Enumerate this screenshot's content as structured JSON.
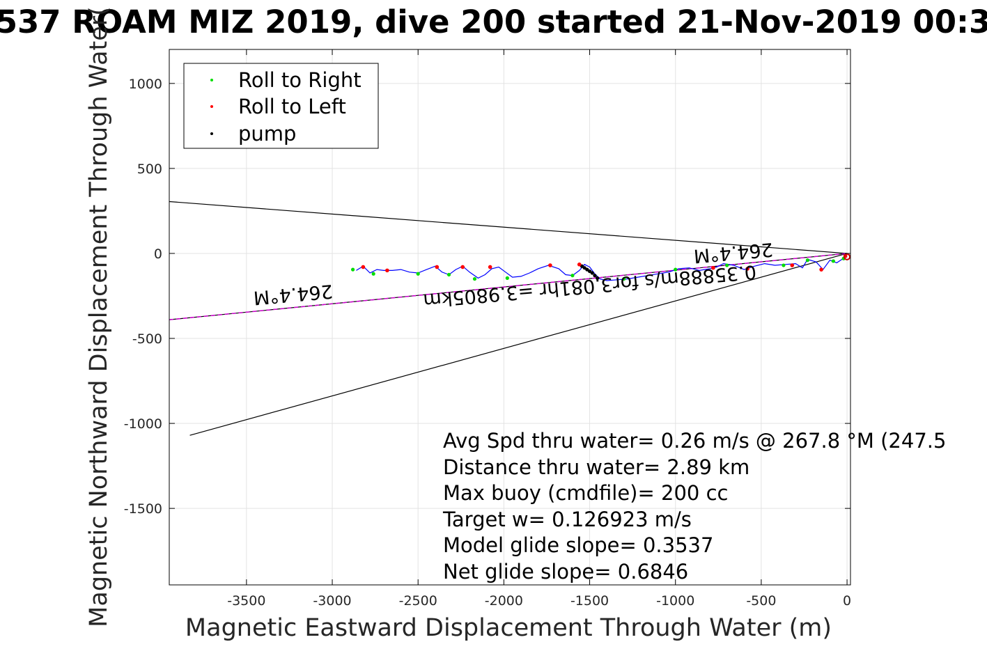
{
  "chart_data": {
    "type": "line",
    "title": "537 ROAM MIZ 2019, dive 200 started 21-Nov-2019 00:3",
    "xlabel": "Magnetic Eastward Displacement Through Water (m)",
    "ylabel": "Magnetic Northward Displacement Through Water(",
    "xlim": [
      -3950,
      20
    ],
    "ylim": [
      -1950,
      1200
    ],
    "xticks": [
      -3500,
      -3000,
      -2500,
      -2000,
      -1500,
      -1000,
      -500,
      0
    ],
    "yticks": [
      1000,
      500,
      0,
      -500,
      -1000,
      -1500
    ],
    "grid": true,
    "legend": {
      "placement": "top-left",
      "entries": [
        {
          "label": "Roll to Right",
          "color": "#00dd00"
        },
        {
          "label": "Roll to Left",
          "color": "#ff0000"
        },
        {
          "label": "pump",
          "color": "#000000"
        }
      ]
    },
    "lines": [
      {
        "x": [
          -3950,
          0
        ],
        "y": [
          305,
          0
        ],
        "color": "#000000"
      },
      {
        "x": [
          -3830,
          0
        ],
        "y": [
          -1070,
          0
        ],
        "color": "#000000"
      },
      {
        "x": [
          -3950,
          0
        ],
        "y": [
          -390,
          0
        ],
        "color": "#000000"
      },
      {
        "x": [
          -3950,
          0
        ],
        "y": [
          -390,
          0
        ],
        "color": "#cc00cc",
        "dash": true
      }
    ],
    "track": {
      "color": "#0000ff",
      "x": [
        0,
        -30,
        -60,
        -100,
        -140,
        -180,
        -230,
        -260,
        -300,
        -360,
        -420,
        -480,
        -540,
        -600,
        -660,
        -720,
        -760,
        -800,
        -860,
        -920,
        -980,
        -1040,
        -1100,
        -1160,
        -1220,
        -1280,
        -1340,
        -1400,
        -1440,
        -1470,
        -1500,
        -1530,
        -1560,
        -1600,
        -1640,
        -1680,
        -1740,
        -1800,
        -1850,
        -1900,
        -1950,
        -1990,
        -2030,
        -2070,
        -2110,
        -2150,
        -2200,
        -2240,
        -2280,
        -2320,
        -2360,
        -2400,
        -2450,
        -2500,
        -2550,
        -2600,
        -2650,
        -2700,
        -2740,
        -2780,
        -2820,
        -2860
      ],
      "y": [
        -20,
        -35,
        -55,
        -40,
        -95,
        -50,
        -35,
        -85,
        -60,
        -65,
        -70,
        -60,
        -75,
        -95,
        -70,
        -60,
        -80,
        -90,
        -100,
        -85,
        -90,
        -110,
        -120,
        -130,
        -140,
        -150,
        -155,
        -160,
        -150,
        -120,
        -80,
        -65,
        -100,
        -130,
        -125,
        -90,
        -70,
        -90,
        -115,
        -135,
        -140,
        -110,
        -80,
        -90,
        -125,
        -145,
        -110,
        -75,
        -95,
        -125,
        -110,
        -75,
        -95,
        -115,
        -110,
        -95,
        -100,
        -100,
        -95,
        -115,
        -75,
        -100
      ]
    },
    "roll_right": {
      "x": [
        -20,
        -80,
        -230,
        -370,
        -700,
        -1000,
        -1300,
        -1600,
        -1980,
        -2170,
        -2320,
        -2500,
        -2760,
        -2880
      ],
      "y": [
        -30,
        -45,
        -40,
        -70,
        -70,
        -95,
        -150,
        -130,
        -145,
        -150,
        -125,
        -120,
        -120,
        -95
      ]
    },
    "roll_left": {
      "x": [
        -10,
        -150,
        -320,
        -580,
        -780,
        -1560,
        -1730,
        -2080,
        -2240,
        -2390,
        -2680,
        -2820
      ],
      "y": [
        -15,
        -95,
        -70,
        -90,
        -85,
        -65,
        -70,
        -80,
        -80,
        -80,
        -100,
        -80
      ]
    },
    "pump": {
      "x": [
        -1560,
        -1545,
        -1530,
        -1515,
        -1500,
        -1485,
        -1470,
        -1455
      ],
      "y": [
        -65,
        -75,
        -85,
        -95,
        -105,
        -115,
        -130,
        -145
      ]
    },
    "annotations": [
      "Avg Spd thru water=  0.26 m/s @ 267.8 °M (247.5",
      "Distance thru water=  2.89 km",
      "Max buoy (cmdfile)= 200 cc",
      "Target w= 0.126923 m/s",
      "Model glide slope= 0.3537",
      "Net glide slope= 0.6846"
    ],
    "heading_labels": [
      "264.4°M",
      "264.4°M"
    ],
    "speed_label": "0.35888m/s for3.081hr =3.9805km"
  }
}
